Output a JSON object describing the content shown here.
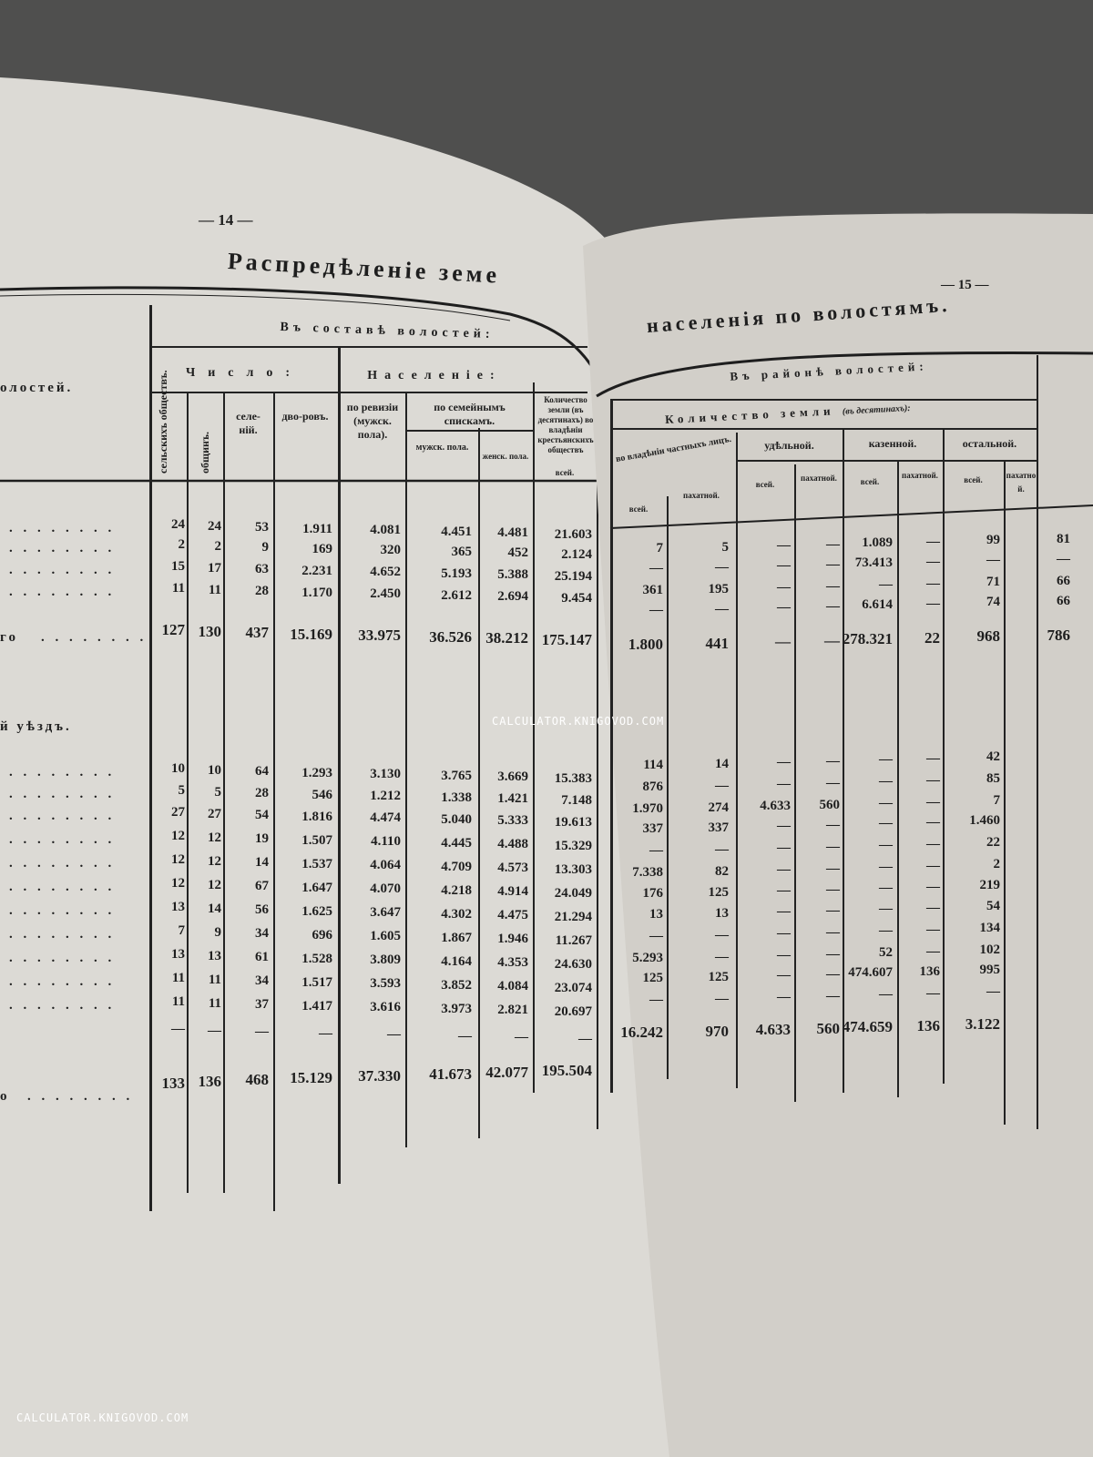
{
  "left_page": {
    "page_number": "— 14 —",
    "title_fragment": "Распредѣленіе земе",
    "stub": {
      "header": "олостей.",
      "group1_total_label": "го",
      "group2_heading": "й уѣздъ.",
      "group2_total_label": "о",
      "leader_dots": ". . . . . . . ."
    },
    "headers": {
      "top": "Въ составѣ волостей:",
      "chislo": "Число:",
      "naselenie": "Населеніе:",
      "land_partial": "Количество земли (въ десятинахъ) во владѣніи крестьянскихъ обществъ",
      "columns": [
        "сельскихъ обществъ.",
        "общинъ.",
        "селе-ній.",
        "дво-ровъ.",
        "по ревизіи (мужск. пола).",
        "мужск. пола.",
        "женск. пола.",
        "всей."
      ],
      "family_lists": "по семейнымъ спискамъ."
    },
    "group1": {
      "rows": [
        [
          "24",
          "24",
          "53",
          "1.911",
          "4.081",
          "4.451",
          "4.481",
          "21.603"
        ],
        [
          "2",
          "2",
          "9",
          "169",
          "320",
          "365",
          "452",
          "2.124"
        ],
        [
          "15",
          "17",
          "63",
          "2.231",
          "4.652",
          "5.193",
          "5.388",
          "25.194"
        ],
        [
          "11",
          "11",
          "28",
          "1.170",
          "2.450",
          "2.612",
          "2.694",
          "9.454"
        ]
      ],
      "total": [
        "127",
        "130",
        "437",
        "15.169",
        "33.975",
        "36.526",
        "38.212",
        "175.147"
      ]
    },
    "group2": {
      "rows": [
        [
          "10",
          "10",
          "64",
          "1.293",
          "3.130",
          "3.765",
          "3.669",
          "15.383"
        ],
        [
          "5",
          "5",
          "28",
          "546",
          "1.212",
          "1.338",
          "1.421",
          "7.148"
        ],
        [
          "27",
          "27",
          "54",
          "1.816",
          "4.474",
          "5.040",
          "5.333",
          "19.613"
        ],
        [
          "12",
          "12",
          "19",
          "1.507",
          "4.110",
          "4.445",
          "4.488",
          "15.329"
        ],
        [
          "12",
          "12",
          "14",
          "1.537",
          "4.064",
          "4.709",
          "4.573",
          "13.303"
        ],
        [
          "12",
          "12",
          "67",
          "1.647",
          "4.070",
          "4.218",
          "4.914",
          "24.049"
        ],
        [
          "13",
          "14",
          "56",
          "1.625",
          "3.647",
          "4.302",
          "4.475",
          "21.294"
        ],
        [
          "7",
          "9",
          "34",
          "696",
          "1.605",
          "1.867",
          "1.946",
          "11.267"
        ],
        [
          "13",
          "13",
          "61",
          "1.528",
          "3.809",
          "4.164",
          "4.353",
          "24.630"
        ],
        [
          "11",
          "11",
          "34",
          "1.517",
          "3.593",
          "3.852",
          "4.084",
          "23.074"
        ],
        [
          "11",
          "11",
          "37",
          "1.417",
          "3.616",
          "3.973",
          "2.821",
          "20.697"
        ],
        [
          "—",
          "—",
          "—",
          "—",
          "—",
          "—",
          "—",
          "—"
        ]
      ],
      "total": [
        "133",
        "136",
        "468",
        "15.129",
        "37.330",
        "41.673",
        "42.077",
        "195.504"
      ]
    }
  },
  "right_page": {
    "page_number": "— 15 —",
    "title_fragment": "населенія по волостямъ.",
    "headers": {
      "top": "Въ районѣ волостей:",
      "land": "Количество земли",
      "land_units": "(въ десятинахъ):",
      "private": "во владѣніи частныхъ лицъ.",
      "udelnoy": "удѣльной.",
      "kazennoy": "казенной.",
      "ostalnoy": "остальной.",
      "vsey": "всей.",
      "pakhatnoy": "пахатной."
    },
    "group1": {
      "rows": [
        [
          "7",
          "5",
          "—",
          "—",
          "1.089",
          "—",
          "99",
          "81"
        ],
        [
          "—",
          "—",
          "—",
          "—",
          "73.413",
          "—",
          "—",
          "—"
        ],
        [
          "361",
          "195",
          "—",
          "—",
          "—",
          "—",
          "71",
          "66"
        ],
        [
          "—",
          "—",
          "—",
          "—",
          "6.614",
          "—",
          "74",
          "66"
        ]
      ],
      "total": [
        "1.800",
        "441",
        "—",
        "—",
        "278.321",
        "22",
        "968",
        "786"
      ]
    },
    "group2": {
      "rows": [
        [
          "114",
          "14",
          "—",
          "—",
          "—",
          "—",
          "42"
        ],
        [
          "876",
          "—",
          "—",
          "—",
          "—",
          "—",
          "85"
        ],
        [
          "1.970",
          "274",
          "4.633",
          "560",
          "—",
          "—",
          "7"
        ],
        [
          "337",
          "337",
          "—",
          "—",
          "—",
          "—",
          "1.460"
        ],
        [
          "—",
          "—",
          "—",
          "—",
          "—",
          "—",
          "22"
        ],
        [
          "7.338",
          "82",
          "—",
          "—",
          "—",
          "—",
          "2"
        ],
        [
          "176",
          "125",
          "—",
          "—",
          "—",
          "—",
          "219"
        ],
        [
          "13",
          "13",
          "—",
          "—",
          "—",
          "—",
          "54"
        ],
        [
          "—",
          "—",
          "—",
          "—",
          "—",
          "—",
          "134"
        ],
        [
          "5.293",
          "—",
          "—",
          "—",
          "52",
          "—",
          "102"
        ],
        [
          "125",
          "125",
          "—",
          "—",
          "474.607",
          "136",
          "995"
        ],
        [
          "—",
          "—",
          "—",
          "—",
          "—",
          "—",
          "—"
        ]
      ],
      "total": [
        "16.242",
        "970",
        "4.633",
        "560",
        "474.659",
        "136",
        "3.122"
      ]
    }
  },
  "watermarks": [
    "CALCULATOR.KNIGOVOD.COM",
    "CALCULATOR.KNIGOVOD.COM"
  ],
  "colors": {
    "paper_left": "#dcdad5",
    "paper_right": "#d2cfc9",
    "background": "#4f4f4e",
    "ink": "#1e1e1e"
  }
}
